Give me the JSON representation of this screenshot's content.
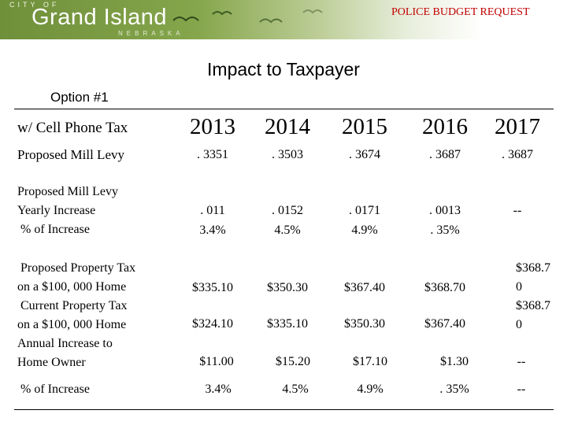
{
  "header": {
    "logo": {
      "line1": "CITY OF",
      "name": "Grand Island",
      "state": "NEBRASKA"
    },
    "banner": "POLICE BUDGET REQUEST",
    "colors": {
      "banner": "#c00000",
      "header_green": "#7c9a44"
    }
  },
  "title": "Impact to Taxpayer",
  "option": "Option #1",
  "table": {
    "corner": "w/ Cell Phone Tax",
    "years": [
      "2013",
      "2014",
      "2015",
      "2016",
      "2017"
    ],
    "mill_levy": {
      "label": "Proposed Mill Levy",
      "values": [
        ". 3351",
        ". 3503",
        ". 3674",
        ". 3687",
        ". 3687"
      ]
    },
    "yearly_increase": {
      "labels": [
        "Proposed Mill Levy",
        "Yearly Increase",
        " % of Increase"
      ],
      "increase": [
        ". 011",
        ". 0152",
        ". 0171",
        ". 0013"
      ],
      "percent": [
        "3.4%",
        "4.5%",
        "4.9%",
        ". 35%"
      ],
      "last": "--"
    },
    "property": {
      "labels": [
        " Proposed Property Tax",
        "on a $100, 000 Home",
        " Current Property Tax",
        "on a $100, 000 Home",
        "Annual Increase to",
        "Home Owner"
      ],
      "proposed": [
        "$335.10",
        "$350.30",
        "$367.40",
        "$368.70"
      ],
      "current": [
        "$324.10",
        "$335.10",
        "$350.30",
        "$367.40"
      ],
      "annual": [
        "$11.00",
        "$15.20",
        "$17.10",
        "$1.30",
        "--"
      ],
      "last_col": [
        "$368.7",
        "0",
        "$368.7",
        "0"
      ]
    },
    "pct_increase": {
      "label": " % of Increase",
      "values": [
        "3.4%",
        "4.5%",
        "4.9%",
        ". 35%",
        "--"
      ]
    }
  }
}
